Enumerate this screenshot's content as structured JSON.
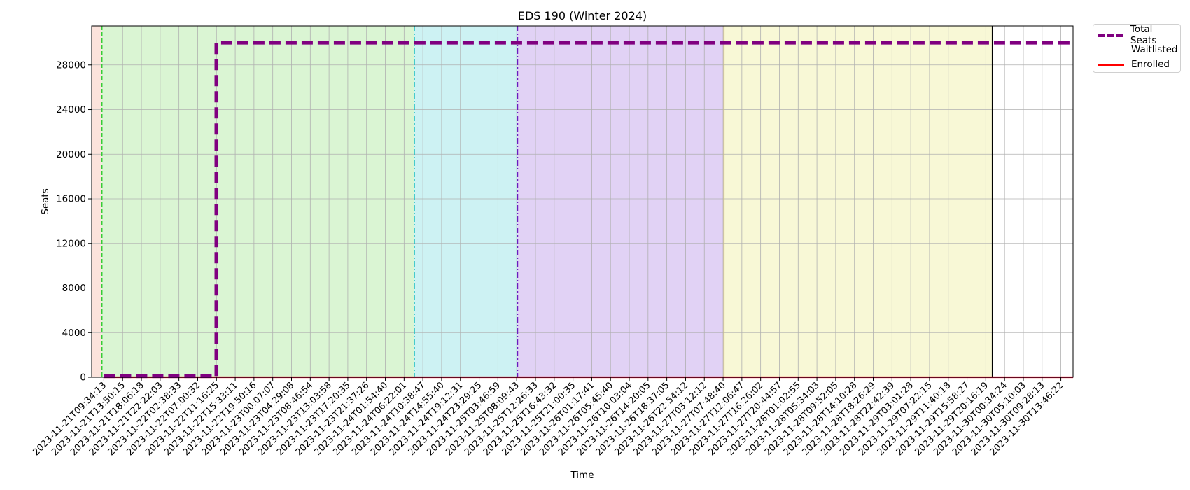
{
  "chart_data": {
    "type": "line",
    "title": "EDS 190 (Winter 2024)",
    "xlabel": "Time",
    "ylabel": "Seats",
    "ylim": [
      0,
      31500
    ],
    "yticks": [
      0,
      4000,
      8000,
      12000,
      16000,
      20000,
      24000,
      28000
    ],
    "grid": true,
    "legend_position": "outside top-right",
    "x": [
      "2023-11-21T09:34:13",
      "2023-11-21T13:50:15",
      "2023-11-21T18:06:18",
      "2023-11-21T22:22:03",
      "2023-11-22T02:38:33",
      "2023-11-22T07:00:32",
      "2023-11-22T11:16:25",
      "2023-11-22T15:33:11",
      "2023-11-22T19:50:16",
      "2023-11-23T00:07:07",
      "2023-11-23T04:29:08",
      "2023-11-23T08:46:54",
      "2023-11-23T13:03:58",
      "2023-11-23T17:20:35",
      "2023-11-23T21:37:26",
      "2023-11-24T01:54:40",
      "2023-11-24T06:22:01",
      "2023-11-24T10:38:47",
      "2023-11-24T14:55:40",
      "2023-11-24T19:12:31",
      "2023-11-24T23:29:25",
      "2023-11-25T03:46:59",
      "2023-11-25T08:09:43",
      "2023-11-25T12:26:33",
      "2023-11-25T16:43:32",
      "2023-11-25T21:00:35",
      "2023-11-26T01:17:41",
      "2023-11-26T05:45:40",
      "2023-11-26T10:03:04",
      "2023-11-26T14:20:05",
      "2023-11-26T18:37:05",
      "2023-11-26T22:54:12",
      "2023-11-27T03:12:12",
      "2023-11-27T07:48:40",
      "2023-11-27T12:06:47",
      "2023-11-27T16:26:02",
      "2023-11-27T20:44:57",
      "2023-11-28T01:02:55",
      "2023-11-28T05:34:03",
      "2023-11-28T09:52:05",
      "2023-11-28T14:10:28",
      "2023-11-28T18:26:29",
      "2023-11-28T22:42:39",
      "2023-11-29T03:01:28",
      "2023-11-29T07:22:15",
      "2023-11-29T11:40:18",
      "2023-11-29T15:58:27",
      "2023-11-29T20:16:19",
      "2023-11-30T00:34:24",
      "2023-11-30T05:10:03",
      "2023-11-30T09:28:13",
      "2023-11-30T13:46:22"
    ],
    "series": [
      {
        "name": "Total Seats",
        "color": "#800080",
        "style": "dashed-thick",
        "values": [
          100,
          100,
          100,
          100,
          100,
          100,
          30000,
          30000,
          30000,
          30000,
          30000,
          30000,
          30000,
          30000,
          30000,
          30000,
          30000,
          30000,
          30000,
          30000,
          30000,
          30000,
          30000,
          30000,
          30000,
          30000,
          30000,
          30000,
          30000,
          30000,
          30000,
          30000,
          30000,
          30000,
          30000,
          30000,
          30000,
          30000,
          30000,
          30000,
          30000,
          30000,
          30000,
          30000,
          30000,
          30000,
          30000,
          30000,
          30000,
          30000,
          30000,
          30000
        ]
      },
      {
        "name": "Waitlisted",
        "color": "#3b3bff",
        "style": "solid-thin",
        "values": [
          0,
          0,
          0,
          0,
          0,
          0,
          0,
          0,
          0,
          0,
          0,
          0,
          0,
          0,
          0,
          0,
          0,
          0,
          0,
          0,
          0,
          0,
          0,
          0,
          0,
          0,
          0,
          0,
          0,
          0,
          0,
          0,
          0,
          0,
          0,
          0,
          0,
          0,
          0,
          0,
          0,
          0,
          0,
          0,
          0,
          0,
          0,
          0,
          0,
          0,
          0,
          0
        ]
      },
      {
        "name": "Enrolled",
        "color": "#ff0000",
        "style": "solid",
        "values": [
          0,
          0,
          0,
          0,
          0,
          0,
          0,
          0,
          0,
          0,
          0,
          0,
          0,
          0,
          0,
          0,
          0,
          0,
          0,
          0,
          0,
          0,
          0,
          0,
          0,
          0,
          0,
          0,
          0,
          0,
          0,
          0,
          0,
          0,
          0,
          0,
          0,
          0,
          0,
          0,
          0,
          0,
          0,
          0,
          0,
          0,
          0,
          0,
          0,
          0,
          0,
          0
        ]
      }
    ],
    "phases": [
      {
        "from": -0.7,
        "to": -0.1,
        "color": "#fbe3dc"
      },
      {
        "from": -0.1,
        "to": 16.55,
        "color": "#daf5d3",
        "start_line": "#2ecc2e",
        "line_style": "dashed"
      },
      {
        "from": 16.55,
        "to": 22.05,
        "color": "#cdf2f3",
        "start_line": "#20c0c0",
        "line_style": "dashdot"
      },
      {
        "from": 22.05,
        "to": 33.05,
        "color": "#e1d2f5",
        "start_line": "#6a1cc0",
        "line_style": "dashdot"
      },
      {
        "from": 33.05,
        "to": 47.35,
        "color": "#f8f8d6",
        "start_line": "#e6d25a",
        "line_style": "solid"
      },
      {
        "from": 47.35,
        "to": 51.0,
        "color": "#ffffff",
        "start_line": "#000000",
        "line_style": "solid"
      }
    ]
  }
}
